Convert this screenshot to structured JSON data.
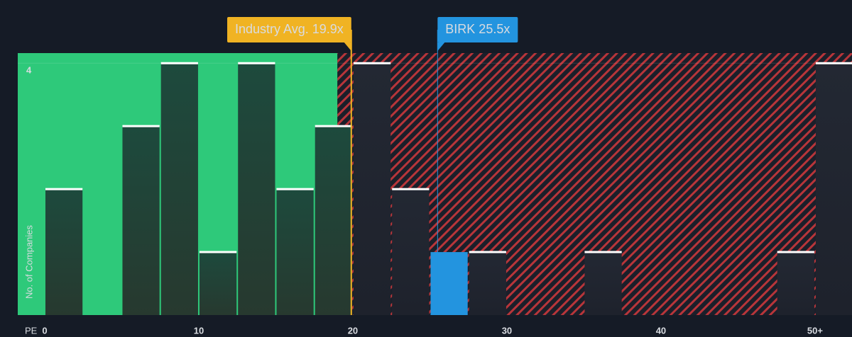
{
  "chart_data": {
    "type": "histogram",
    "xlabel": "PE",
    "ylabel": "No. of Companies",
    "bins": [
      0,
      2.5,
      5,
      7.5,
      10,
      12.5,
      15,
      17.5,
      20,
      22.5,
      25,
      27.5,
      30,
      32.5,
      35,
      37.5,
      40,
      42.5,
      45,
      47.5,
      50,
      52.5
    ],
    "counts": [
      2,
      0,
      3,
      4,
      1,
      4,
      2,
      3,
      4,
      2,
      1,
      1,
      0,
      0,
      1,
      0,
      0,
      0,
      0,
      1,
      4
    ],
    "xlim": [
      -1.75,
      52.4
    ],
    "ylim": [
      0,
      4.16
    ],
    "xticks": [
      0,
      10,
      20,
      30,
      40,
      {
        "value": 50,
        "label": "50+"
      }
    ],
    "yticks": [
      4
    ],
    "green_zone_end": 19,
    "annotations": [
      {
        "label": "Industry Avg. 19.9x",
        "value": 19.9,
        "color": "#f0b323"
      },
      {
        "label": "BIRK 25.5x",
        "value": 25.5,
        "color": "#2394df"
      }
    ],
    "highlight_annotation": 1,
    "grid": true
  }
}
